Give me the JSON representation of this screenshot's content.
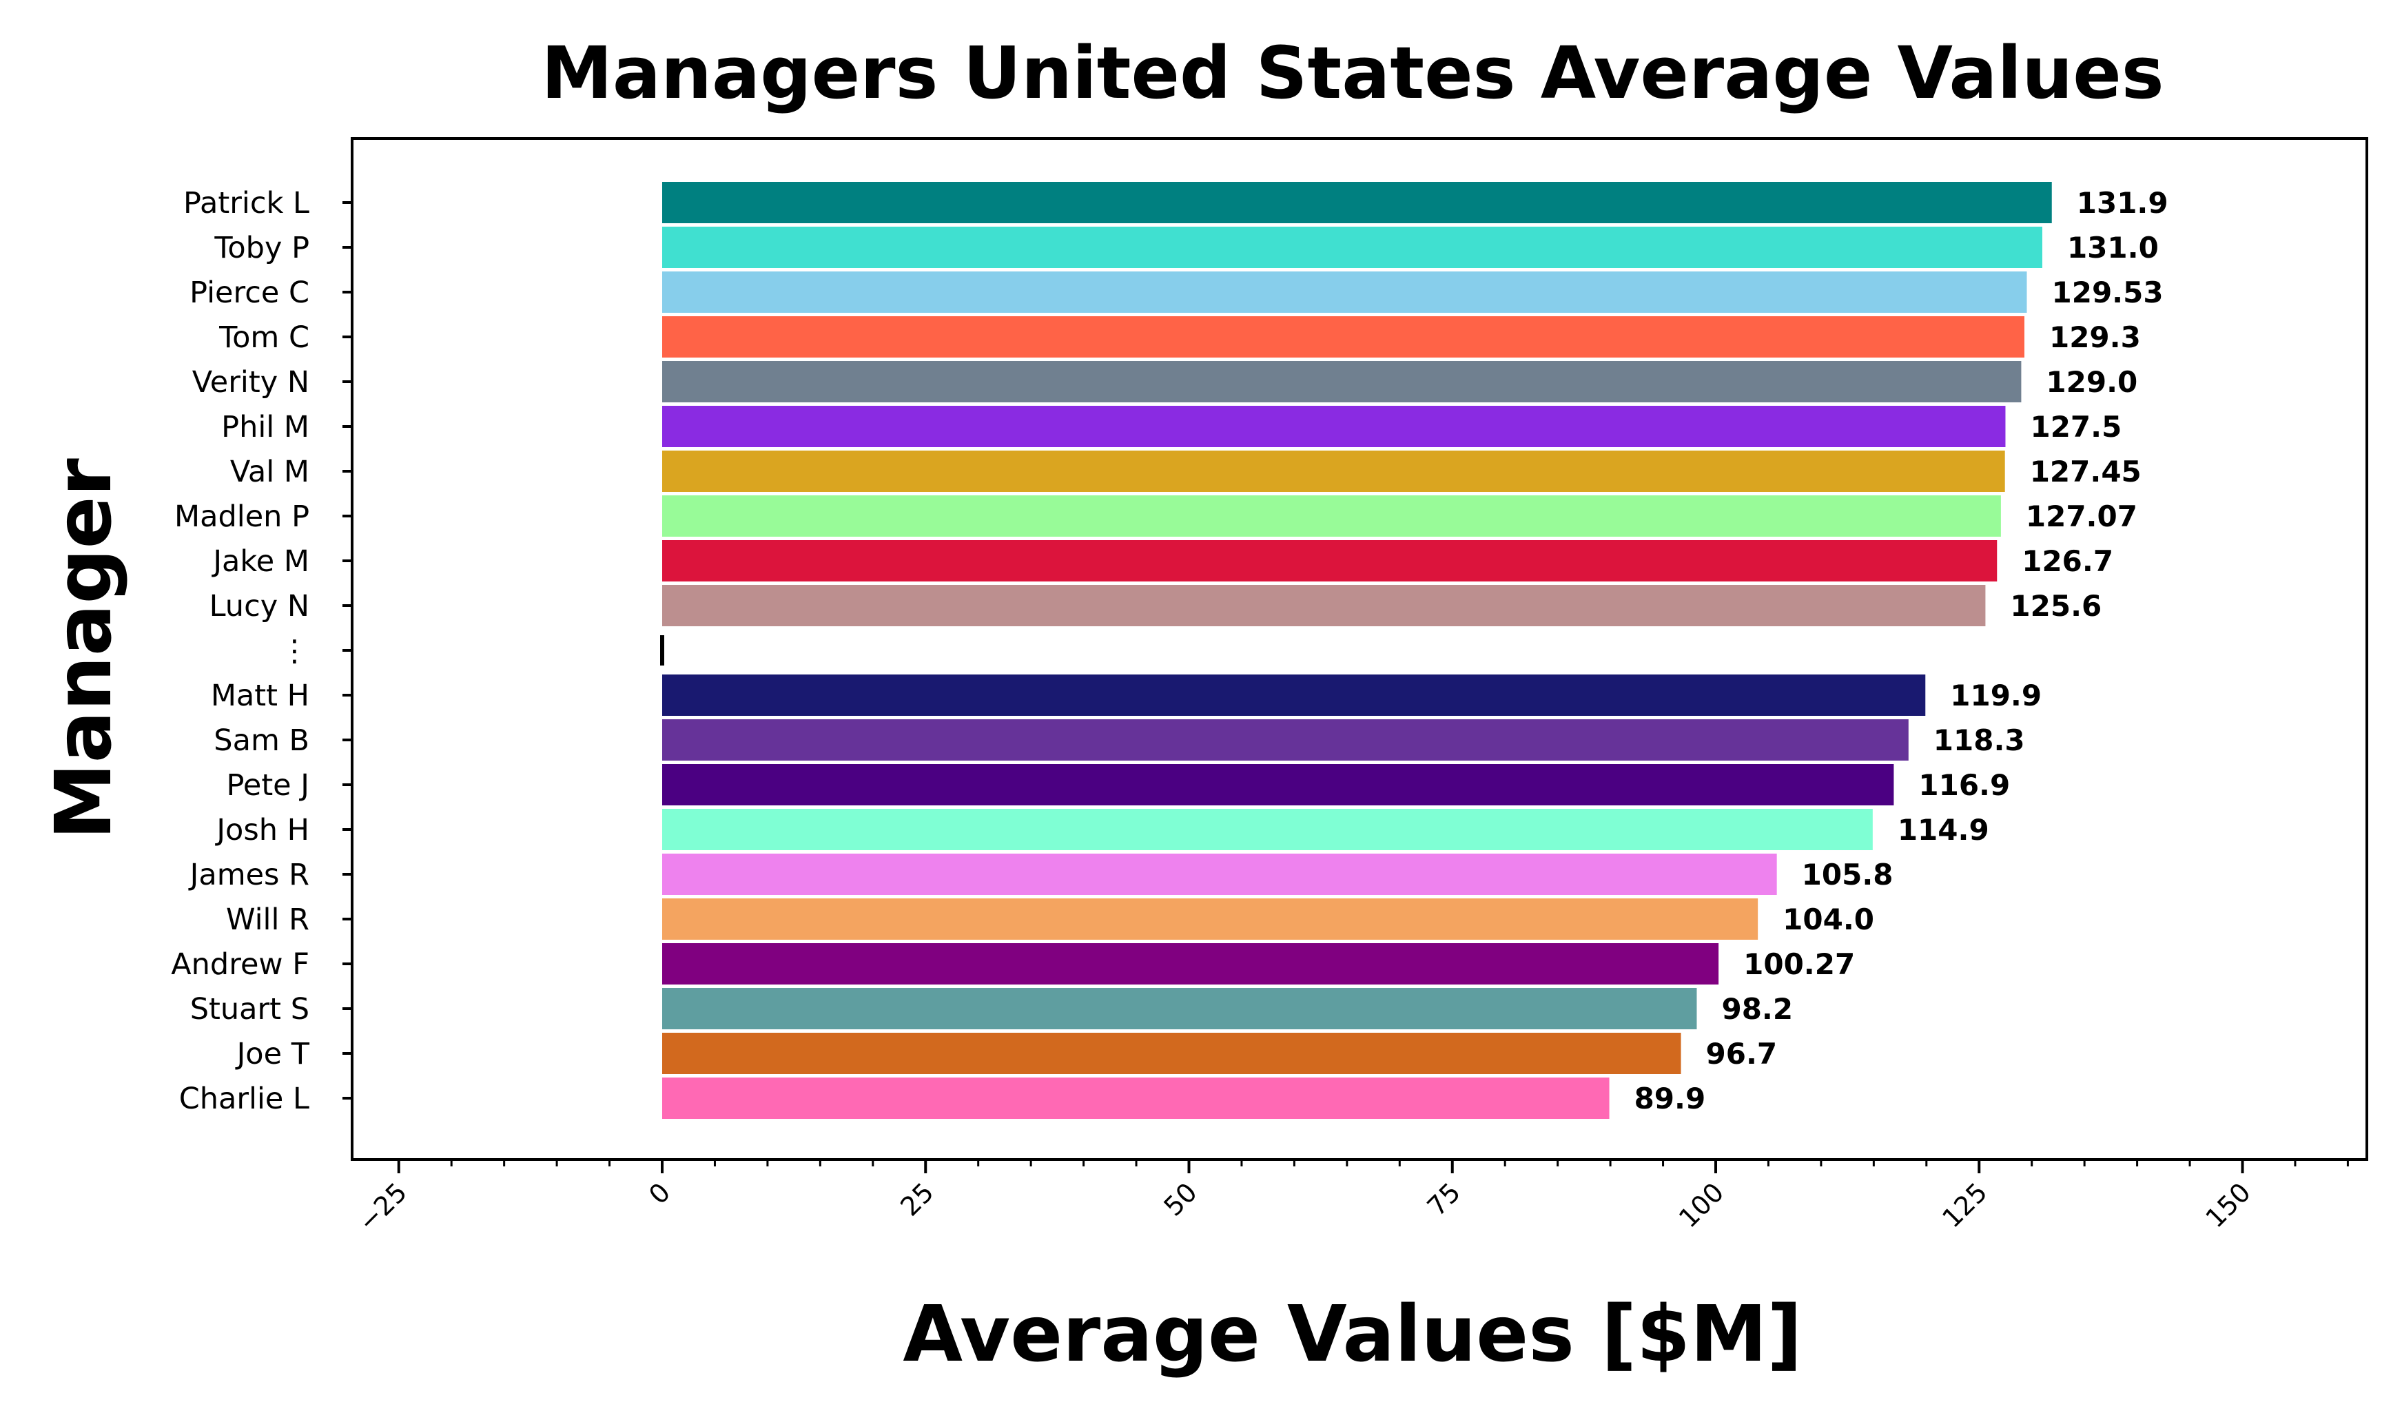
{
  "chart_data": {
    "type": "bar",
    "orientation": "horizontal",
    "title": "Managers United States Average Values",
    "xlabel": "Average Values [$M]",
    "ylabel": "Manager",
    "xlim": [
      -25,
      160
    ],
    "xticks": [
      -25,
      0,
      25,
      50,
      75,
      100,
      125,
      150
    ],
    "xtick_labels": [
      "−25",
      "0",
      "25",
      "50",
      "75",
      "100",
      "125",
      "150"
    ],
    "grid": false,
    "legend": "none",
    "categories": [
      "Patrick L",
      "Toby P",
      "Pierce C",
      "Tom C",
      "Verity N",
      "Phil M",
      "Val M",
      "Madlen P",
      "Jake M",
      "Lucy N",
      "⋮",
      "Matt H",
      "Sam B",
      "Pete J",
      "Josh H",
      "James R",
      "Will R",
      "Andrew F",
      "Stuart S",
      "Joe T",
      "Charlie L"
    ],
    "values": [
      131.9,
      131.0,
      129.53,
      129.3,
      129.0,
      127.5,
      127.45,
      127.07,
      126.7,
      125.6,
      null,
      119.9,
      118.3,
      116.9,
      114.9,
      105.8,
      104.0,
      100.27,
      98.2,
      96.7,
      89.9
    ],
    "value_labels": [
      "131.9",
      "131.0",
      "129.53",
      "129.3",
      "129.0",
      "127.5",
      "127.45",
      "127.07",
      "126.7",
      "125.6",
      "",
      "119.9",
      "118.3",
      "116.9",
      "114.9",
      "105.8",
      "104.0",
      "100.27",
      "98.2",
      "96.7",
      "89.9"
    ],
    "colors": [
      "#008080",
      "#40e0d0",
      "#87ceeb",
      "#ff6347",
      "#708090",
      "#8a2be2",
      "#daa520",
      "#98fb98",
      "#dc143c",
      "#bc8f8f",
      "#000000",
      "#191970",
      "#663399",
      "#4b0082",
      "#7fffd4",
      "#ee82ee",
      "#f4a460",
      "#800080",
      "#5f9ea0",
      "#d2691e",
      "#ff69b4"
    ]
  }
}
